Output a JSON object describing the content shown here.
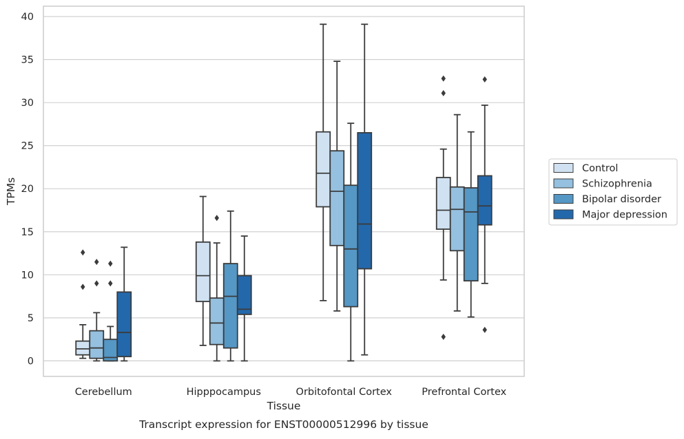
{
  "caption": "Transcript expression for ENST00000512996 by tissue",
  "chart_data": {
    "type": "boxplot",
    "xlabel": "Tissue",
    "ylabel": "TPMs",
    "ylim": [
      -1.8,
      41.2
    ],
    "yticks": [
      0,
      5,
      10,
      15,
      20,
      25,
      30,
      35,
      40
    ],
    "grid": true,
    "legend_position": "right",
    "categories": [
      "Cerebellum",
      "Hipppocampus",
      "Orbitofontal Cortex",
      "Prefrontal Cortex"
    ],
    "series": [
      {
        "name": "Control",
        "color": "#d0e2f2",
        "boxes": [
          {
            "whislo": 0.3,
            "q1": 0.7,
            "med": 1.4,
            "q3": 2.3,
            "whishi": 4.2,
            "fliers": [
              8.6,
              12.6
            ]
          },
          {
            "whislo": 1.8,
            "q1": 6.9,
            "med": 9.9,
            "q3": 13.8,
            "whishi": 19.1,
            "fliers": []
          },
          {
            "whislo": 7.0,
            "q1": 17.9,
            "med": 21.8,
            "q3": 26.6,
            "whishi": 39.1,
            "fliers": []
          },
          {
            "whislo": 9.4,
            "q1": 15.3,
            "med": 17.5,
            "q3": 21.3,
            "whishi": 24.6,
            "fliers": [
              2.8,
              31.1,
              32.8
            ]
          }
        ]
      },
      {
        "name": "Schizophrenia",
        "color": "#95c0df",
        "boxes": [
          {
            "whislo": 0.0,
            "q1": 0.3,
            "med": 1.5,
            "q3": 3.5,
            "whishi": 5.6,
            "fliers": [
              9.0,
              11.5
            ]
          },
          {
            "whislo": 0.0,
            "q1": 1.9,
            "med": 4.4,
            "q3": 7.3,
            "whishi": 13.7,
            "fliers": [
              16.6
            ]
          },
          {
            "whislo": 5.8,
            "q1": 13.4,
            "med": 19.7,
            "q3": 24.4,
            "whishi": 34.8,
            "fliers": []
          },
          {
            "whislo": 5.8,
            "q1": 12.8,
            "med": 17.6,
            "q3": 20.2,
            "whishi": 28.6,
            "fliers": []
          }
        ]
      },
      {
        "name": "Bipolar disorder",
        "color": "#5597c5",
        "boxes": [
          {
            "whislo": 0.0,
            "q1": 0.0,
            "med": 0.4,
            "q3": 2.5,
            "whishi": 4.0,
            "fliers": [
              9.0,
              11.3
            ]
          },
          {
            "whislo": 0.0,
            "q1": 1.5,
            "med": 7.5,
            "q3": 11.3,
            "whishi": 17.4,
            "fliers": []
          },
          {
            "whislo": 0.0,
            "q1": 6.3,
            "med": 13.0,
            "q3": 20.4,
            "whishi": 27.6,
            "fliers": []
          },
          {
            "whislo": 5.1,
            "q1": 9.3,
            "med": 17.3,
            "q3": 20.1,
            "whishi": 26.6,
            "fliers": []
          }
        ]
      },
      {
        "name": "Major depression",
        "color": "#2468ac",
        "boxes": [
          {
            "whislo": 0.0,
            "q1": 0.5,
            "med": 3.3,
            "q3": 8.0,
            "whishi": 13.2,
            "fliers": []
          },
          {
            "whislo": 0.0,
            "q1": 5.4,
            "med": 6.0,
            "q3": 9.9,
            "whishi": 14.5,
            "fliers": []
          },
          {
            "whislo": 0.7,
            "q1": 10.7,
            "med": 15.9,
            "q3": 26.5,
            "whishi": 39.1,
            "fliers": []
          },
          {
            "whislo": 9.0,
            "q1": 15.8,
            "med": 18.0,
            "q3": 21.5,
            "whishi": 29.7,
            "fliers": [
              3.6,
              32.7
            ]
          }
        ]
      }
    ]
  }
}
